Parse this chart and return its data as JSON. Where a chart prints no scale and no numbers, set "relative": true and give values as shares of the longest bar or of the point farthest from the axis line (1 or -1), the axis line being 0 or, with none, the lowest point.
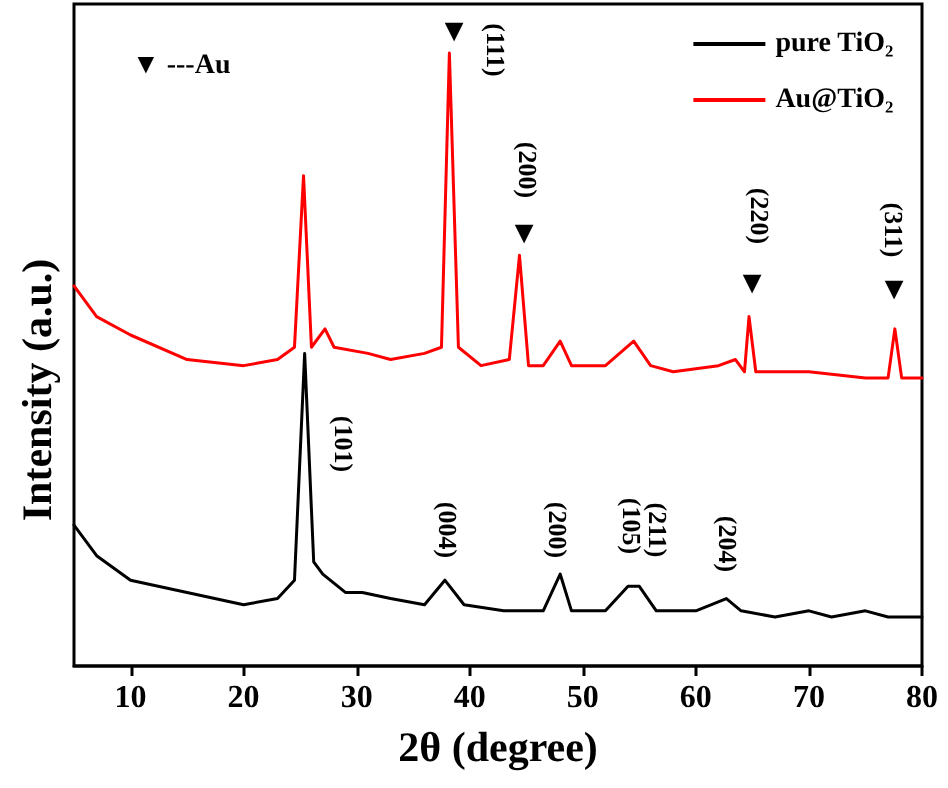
{
  "chart_data": {
    "type": "line",
    "relative": true,
    "xlabel": "2θ (degree)",
    "ylabel": "Intensity (a.u.)",
    "xlim": [
      5,
      80
    ],
    "xticks": [
      10,
      20,
      30,
      40,
      50,
      60,
      70,
      80
    ],
    "legend": "top right",
    "grid": false,
    "marker": "none",
    "line_style": "solid",
    "series": [
      {
        "name": "pure TiO₂",
        "color": "#000000",
        "x": [
          5,
          7,
          10,
          15,
          20,
          23,
          24.5,
          25.4,
          26.2,
          27,
          29,
          30.5,
          33,
          36,
          37.8,
          39.5,
          43,
          46.5,
          48,
          49,
          52,
          54,
          55,
          56.5,
          60,
          62.7,
          64,
          67,
          70,
          72,
          75,
          77,
          80
        ],
        "values": [
          0.23,
          0.18,
          0.14,
          0.12,
          0.1,
          0.11,
          0.14,
          0.51,
          0.17,
          0.15,
          0.12,
          0.12,
          0.11,
          0.1,
          0.14,
          0.1,
          0.09,
          0.09,
          0.15,
          0.09,
          0.09,
          0.13,
          0.13,
          0.09,
          0.09,
          0.11,
          0.09,
          0.08,
          0.09,
          0.08,
          0.09,
          0.08,
          0.08
        ]
      },
      {
        "name": "Au@TiO₂",
        "color": "#ff0000",
        "x": [
          5,
          7,
          10,
          15,
          20,
          23,
          24.5,
          25.3,
          26,
          27.2,
          28,
          31,
          33,
          36,
          37.5,
          38.2,
          39,
          41,
          43.5,
          44.4,
          45.2,
          46.5,
          48,
          49,
          52,
          54.5,
          56,
          58,
          62,
          63.5,
          64.3,
          64.7,
          65.3,
          68,
          70,
          75,
          77,
          77.6,
          78.2,
          80
        ],
        "values": [
          0.62,
          0.57,
          0.54,
          0.5,
          0.49,
          0.5,
          0.52,
          0.8,
          0.52,
          0.55,
          0.52,
          0.51,
          0.5,
          0.51,
          0.52,
          1,
          0.52,
          0.49,
          0.5,
          0.67,
          0.49,
          0.49,
          0.53,
          0.49,
          0.49,
          0.53,
          0.49,
          0.48,
          0.49,
          0.5,
          0.48,
          0.57,
          0.48,
          0.48,
          0.48,
          0.47,
          0.47,
          0.55,
          0.47,
          0.47
        ]
      }
    ],
    "annotations": [
      "▼ ---Au",
      "▼",
      "(111)",
      "▼",
      "(200)",
      "▼",
      "(220)",
      "▼",
      "(311)",
      "(101)",
      "(004)",
      "(200)",
      "(105)",
      "(211)",
      "(204)"
    ]
  }
}
